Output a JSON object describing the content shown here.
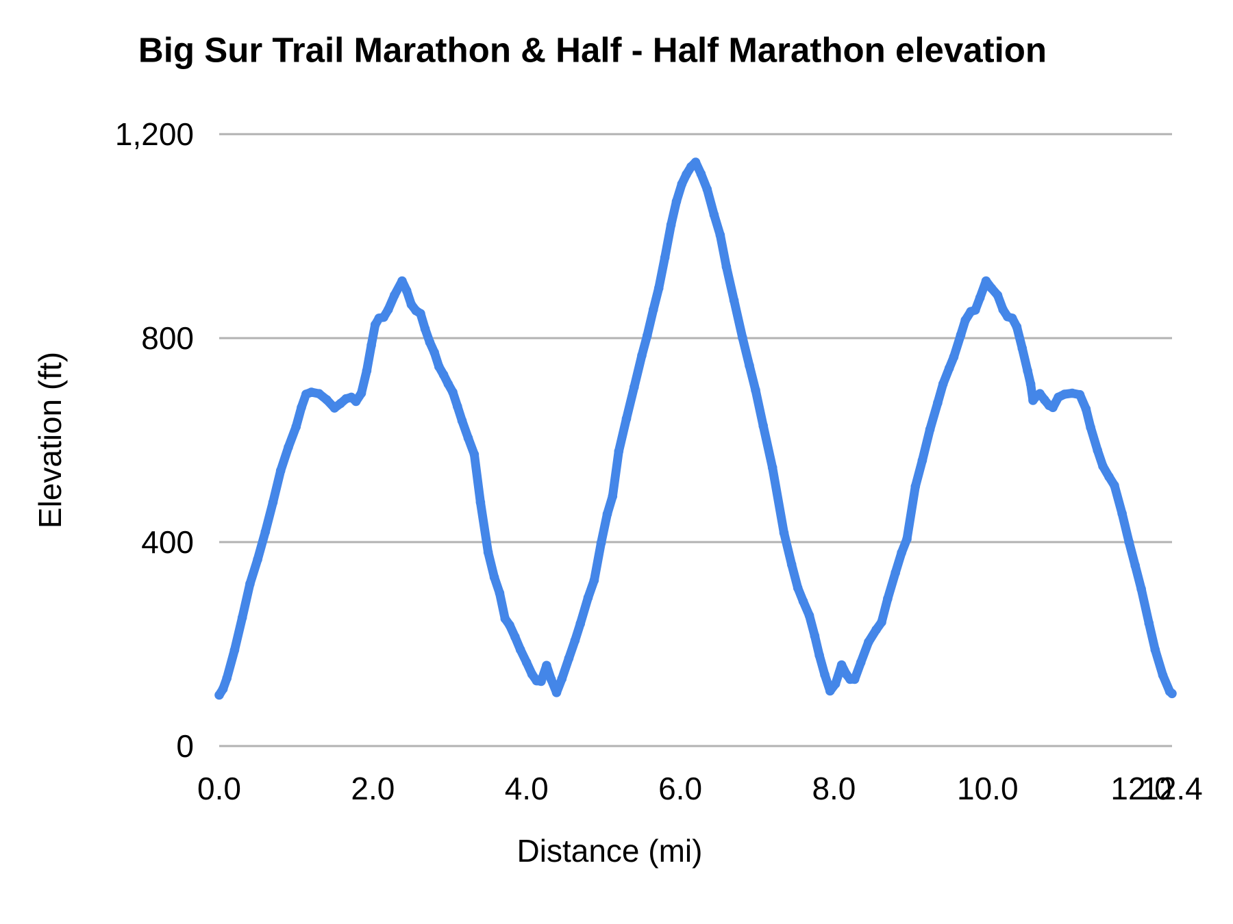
{
  "title": "Big Sur Trail Marathon & Half - Half Marathon elevation",
  "chart_data": {
    "type": "line",
    "title": "Big Sur Trail Marathon & Half - Half Marathon elevation",
    "xlabel": "Distance (mi)",
    "ylabel": "Elevation (ft)",
    "xlim": [
      0,
      12.4
    ],
    "ylim": [
      0,
      1200
    ],
    "grid": "horizontal-only",
    "legend": "none",
    "line_color": "#4486e8",
    "gridline_color": "#b2b2b2",
    "text_color": "#000000",
    "x_ticks": [
      {
        "value": 0,
        "label": "0.0"
      },
      {
        "value": 2,
        "label": "2.0"
      },
      {
        "value": 4,
        "label": "4.0"
      },
      {
        "value": 6,
        "label": "6.0"
      },
      {
        "value": 8,
        "label": "8.0"
      },
      {
        "value": 10,
        "label": "10.0"
      },
      {
        "value": 12,
        "label": "12.0"
      },
      {
        "value": 12.4,
        "label": "12.4"
      }
    ],
    "y_ticks": [
      {
        "value": 0,
        "label": "0"
      },
      {
        "value": 400,
        "label": "400"
      },
      {
        "value": 800,
        "label": "800"
      },
      {
        "value": 1200,
        "label": "1,200"
      }
    ],
    "series": [
      {
        "name": "Half Marathon elevation",
        "points": [
          [
            0.0,
            100
          ],
          [
            0.05,
            112
          ],
          [
            0.1,
            133
          ],
          [
            0.2,
            188
          ],
          [
            0.3,
            252
          ],
          [
            0.4,
            318
          ],
          [
            0.5,
            366
          ],
          [
            0.6,
            420
          ],
          [
            0.7,
            478
          ],
          [
            0.8,
            540
          ],
          [
            0.9,
            586
          ],
          [
            1.0,
            626
          ],
          [
            1.07,
            664
          ],
          [
            1.13,
            690
          ],
          [
            1.2,
            694
          ],
          [
            1.3,
            691
          ],
          [
            1.4,
            679
          ],
          [
            1.5,
            663
          ],
          [
            1.58,
            672
          ],
          [
            1.65,
            681
          ],
          [
            1.72,
            684
          ],
          [
            1.78,
            676
          ],
          [
            1.85,
            692
          ],
          [
            1.92,
            736
          ],
          [
            1.98,
            786
          ],
          [
            2.03,
            826
          ],
          [
            2.08,
            839
          ],
          [
            2.14,
            841
          ],
          [
            2.2,
            856
          ],
          [
            2.28,
            884
          ],
          [
            2.38,
            912
          ],
          [
            2.44,
            893
          ],
          [
            2.5,
            866
          ],
          [
            2.56,
            854
          ],
          [
            2.62,
            848
          ],
          [
            2.68,
            818
          ],
          [
            2.74,
            792
          ],
          [
            2.8,
            772
          ],
          [
            2.86,
            744
          ],
          [
            2.92,
            728
          ],
          [
            2.98,
            710
          ],
          [
            3.04,
            694
          ],
          [
            3.1,
            666
          ],
          [
            3.16,
            638
          ],
          [
            3.24,
            604
          ],
          [
            3.32,
            572
          ],
          [
            3.4,
            478
          ],
          [
            3.5,
            380
          ],
          [
            3.58,
            331
          ],
          [
            3.65,
            300
          ],
          [
            3.72,
            250
          ],
          [
            3.78,
            237
          ],
          [
            3.85,
            214
          ],
          [
            3.92,
            189
          ],
          [
            4.0,
            164
          ],
          [
            4.07,
            141
          ],
          [
            4.13,
            128
          ],
          [
            4.19,
            127
          ],
          [
            4.26,
            158
          ],
          [
            4.32,
            131
          ],
          [
            4.39,
            105
          ],
          [
            4.46,
            132
          ],
          [
            4.55,
            172
          ],
          [
            4.63,
            207
          ],
          [
            4.7,
            240
          ],
          [
            4.8,
            291
          ],
          [
            4.88,
            325
          ],
          [
            4.97,
            398
          ],
          [
            5.05,
            455
          ],
          [
            5.12,
            490
          ],
          [
            5.2,
            578
          ],
          [
            5.3,
            642
          ],
          [
            5.4,
            704
          ],
          [
            5.5,
            766
          ],
          [
            5.57,
            805
          ],
          [
            5.65,
            856
          ],
          [
            5.72,
            898
          ],
          [
            5.8,
            958
          ],
          [
            5.88,
            1022
          ],
          [
            5.95,
            1068
          ],
          [
            6.02,
            1102
          ],
          [
            6.08,
            1121
          ],
          [
            6.14,
            1136
          ],
          [
            6.2,
            1145
          ],
          [
            6.27,
            1122
          ],
          [
            6.35,
            1092
          ],
          [
            6.44,
            1042
          ],
          [
            6.52,
            1002
          ],
          [
            6.6,
            940
          ],
          [
            6.7,
            874
          ],
          [
            6.81,
            801
          ],
          [
            6.9,
            746
          ],
          [
            6.98,
            698
          ],
          [
            7.08,
            628
          ],
          [
            7.2,
            546
          ],
          [
            7.35,
            418
          ],
          [
            7.45,
            356
          ],
          [
            7.53,
            310
          ],
          [
            7.6,
            284
          ],
          [
            7.68,
            256
          ],
          [
            7.75,
            216
          ],
          [
            7.81,
            178
          ],
          [
            7.88,
            140
          ],
          [
            7.95,
            108
          ],
          [
            8.02,
            122
          ],
          [
            8.1,
            159
          ],
          [
            8.16,
            141
          ],
          [
            8.21,
            131
          ],
          [
            8.27,
            131
          ],
          [
            8.35,
            164
          ],
          [
            8.45,
            204
          ],
          [
            8.55,
            228
          ],
          [
            8.62,
            243
          ],
          [
            8.7,
            289
          ],
          [
            8.8,
            340
          ],
          [
            8.88,
            379
          ],
          [
            8.95,
            406
          ],
          [
            9.06,
            509
          ],
          [
            9.15,
            560
          ],
          [
            9.25,
            621
          ],
          [
            9.35,
            673
          ],
          [
            9.42,
            710
          ],
          [
            9.5,
            741
          ],
          [
            9.56,
            763
          ],
          [
            9.65,
            806
          ],
          [
            9.71,
            835
          ],
          [
            9.78,
            852
          ],
          [
            9.84,
            855
          ],
          [
            9.9,
            879
          ],
          [
            9.98,
            912
          ],
          [
            10.05,
            898
          ],
          [
            10.13,
            884
          ],
          [
            10.2,
            856
          ],
          [
            10.26,
            842
          ],
          [
            10.32,
            839
          ],
          [
            10.38,
            822
          ],
          [
            10.45,
            780
          ],
          [
            10.52,
            736
          ],
          [
            10.56,
            710
          ],
          [
            10.59,
            678
          ],
          [
            10.64,
            687
          ],
          [
            10.68,
            691
          ],
          [
            10.74,
            679
          ],
          [
            10.8,
            668
          ],
          [
            10.85,
            664
          ],
          [
            10.92,
            684
          ],
          [
            11.0,
            690
          ],
          [
            11.1,
            692
          ],
          [
            11.2,
            689
          ],
          [
            11.28,
            661
          ],
          [
            11.34,
            625
          ],
          [
            11.43,
            580
          ],
          [
            11.5,
            549
          ],
          [
            11.58,
            528
          ],
          [
            11.65,
            511
          ],
          [
            11.75,
            456
          ],
          [
            11.84,
            400
          ],
          [
            11.92,
            354
          ],
          [
            12.0,
            308
          ],
          [
            12.1,
            241
          ],
          [
            12.18,
            189
          ],
          [
            12.28,
            139
          ],
          [
            12.37,
            107
          ],
          [
            12.4,
            103
          ]
        ]
      }
    ]
  }
}
